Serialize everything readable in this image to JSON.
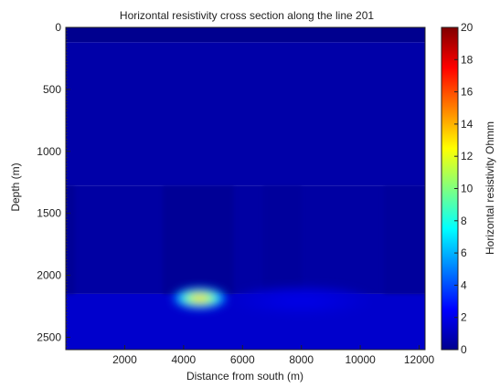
{
  "chart_data": {
    "type": "heatmap",
    "title": "Horizontal resistivity cross section along the line 201",
    "xlabel": "Distance from south (m)",
    "ylabel": "Depth (m)",
    "colorbar_label": "Horizontal resistivity Ohmm",
    "xlim": [
      0,
      12200
    ],
    "ylim": [
      2600,
      0
    ],
    "y_reversed": true,
    "x_ticks": [
      2000,
      4000,
      6000,
      8000,
      10000,
      12000
    ],
    "y_ticks": [
      0,
      500,
      1000,
      1500,
      2000,
      2500
    ],
    "colorbar_range": [
      0,
      20
    ],
    "colorbar_ticks": [
      0,
      2,
      4,
      6,
      8,
      10,
      12,
      14,
      16,
      18,
      20
    ],
    "colormap": "jet",
    "layers": [
      {
        "depth_from": 0,
        "depth_to": 120,
        "value": 0.3
      },
      {
        "depth_from": 120,
        "depth_to": 1280,
        "value": 0.8
      },
      {
        "depth_from": 1280,
        "depth_to": 2150,
        "value": 0.7
      },
      {
        "depth_from": 2150,
        "depth_to": 2600,
        "value": 1.5
      }
    ],
    "column_variations": [
      {
        "depth_from": 1280,
        "depth_to": 2150,
        "x_from": 0,
        "x_to": 300,
        "value": 0.45
      },
      {
        "depth_from": 1280,
        "depth_to": 2150,
        "x_from": 3300,
        "x_to": 5700,
        "value": 0.45
      },
      {
        "depth_from": 1280,
        "depth_to": 2150,
        "x_from": 6700,
        "x_to": 8000,
        "value": 0.55
      },
      {
        "depth_from": 1280,
        "depth_to": 2150,
        "x_from": 10800,
        "x_to": 12200,
        "value": 0.55
      }
    ],
    "anomalies": [
      {
        "x": 4550,
        "depth": 2185,
        "peak_value": 13.5,
        "x_spread": 480,
        "depth_spread": 45
      },
      {
        "x": 8000,
        "depth": 2210,
        "peak_value": 2.0,
        "x_spread": 1200,
        "depth_spread": 60
      }
    ]
  }
}
